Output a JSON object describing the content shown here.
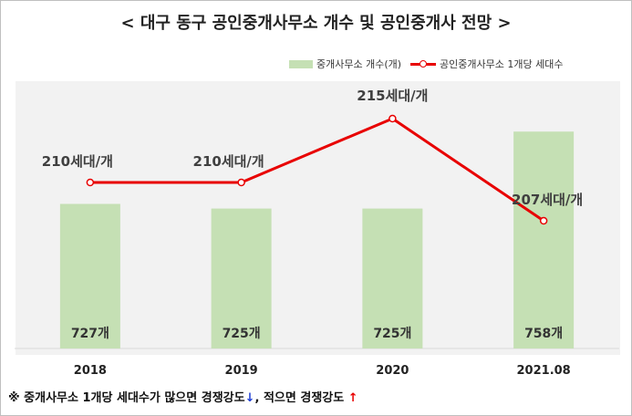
{
  "title": "< 대구 동구 공인중개사무소 개수 및 공인중개사 전망 >",
  "legend": {
    "bar_label": "중개사무소 개수(개)",
    "line_label": "공인중개사무소 1개당 세대수"
  },
  "footnote": {
    "text1": "※ 중개사무소 1개당 세대수가 많으면 경쟁강도",
    "arrow_down": "↓",
    "text2": ", 적으면 경쟁강도 ",
    "arrow_up": "↑"
  },
  "colors": {
    "bar": "#c5e0b4",
    "line": "#e80000",
    "plot_bg": "#f2f2f2"
  },
  "chart_data": {
    "type": "bar",
    "categories": [
      "2018",
      "2019",
      "2020",
      "2021.08"
    ],
    "series": [
      {
        "name": "중개사무소 개수(개)",
        "type": "bar",
        "values": [
          727,
          725,
          725,
          758
        ],
        "labels": [
          "727개",
          "725개",
          "725개",
          "758개"
        ]
      },
      {
        "name": "공인중개사무소 1개당 세대수",
        "type": "line",
        "values": [
          210,
          210,
          215,
          207
        ],
        "labels": [
          "210세대/개",
          "210세대/개",
          "215세대/개",
          "207세대/개"
        ]
      }
    ],
    "grid": false,
    "legend_position": "top-right"
  }
}
